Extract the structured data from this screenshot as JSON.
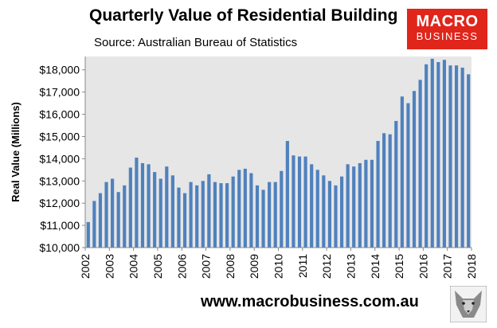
{
  "title": "Quarterly Value of Residential Building",
  "source": "Source: Australian Bureau of Statistics",
  "logo": {
    "line1": "MACRO",
    "line2": "BUSINESS"
  },
  "website": "www.macrobusiness.com.au",
  "colors": {
    "bar": "#4f81bd",
    "plot_bg": "#e6e6e6",
    "logo_bg": "#e0251b"
  },
  "chart_data": {
    "type": "bar",
    "title": "Quarterly Value of Residential Building",
    "xlabel": "",
    "ylabel": "Real Value (Millions)",
    "ylim": [
      10000,
      18600
    ],
    "y_ticks": [
      10000,
      11000,
      12000,
      13000,
      14000,
      15000,
      16000,
      17000,
      18000
    ],
    "y_tick_labels": [
      "$10,000",
      "$11,000",
      "$12,000",
      "$13,000",
      "$14,000",
      "$15,000",
      "$16,000",
      "$17,000",
      "$18,000"
    ],
    "x_tick_labels": [
      "2002",
      "2003",
      "2004",
      "2005",
      "2006",
      "2007",
      "2008",
      "2009",
      "2010",
      "2011",
      "2012",
      "2013",
      "2014",
      "2015",
      "2016",
      "2017",
      "2018"
    ],
    "series": [
      {
        "name": "Residential building",
        "values": [
          11150,
          12100,
          12450,
          12950,
          13100,
          12500,
          12800,
          13600,
          14050,
          13800,
          13750,
          13400,
          13100,
          13650,
          13250,
          12700,
          12450,
          12950,
          12800,
          13000,
          13300,
          12950,
          12900,
          12900,
          13200,
          13500,
          13550,
          13350,
          12800,
          12600,
          12950,
          12950,
          13450,
          14800,
          14150,
          14100,
          14100,
          13750,
          13500,
          13250,
          13000,
          12800,
          13200,
          13750,
          13650,
          13800,
          13950,
          13950,
          14800,
          15150,
          15100,
          15700,
          16800,
          16500,
          17050,
          17550,
          18250,
          18500,
          18350,
          18450,
          18200,
          18200,
          18100,
          17800
        ]
      }
    ],
    "grid": false,
    "legend": "none"
  }
}
